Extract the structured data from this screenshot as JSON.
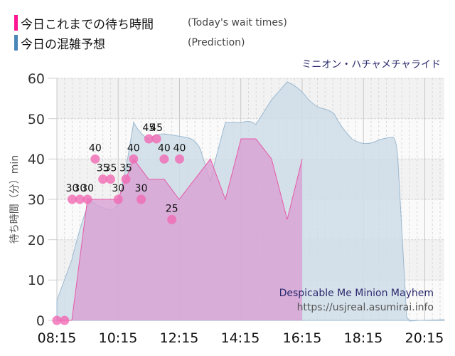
{
  "legend": {
    "items": [
      {
        "label_jp": "今日これまでの待ち時間",
        "label_en": "(Today's wait times)",
        "color": "#ff1493"
      },
      {
        "label_jp": "今日の混雑予想",
        "label_en": "(Prediction)",
        "color": "#4a86b8"
      }
    ]
  },
  "ride_name_jp": "ミニオン・ハチャメチャライド",
  "y_axis_title": "待ち時間（分）min",
  "watermark": {
    "title": "Despicable Me Minion Mayhem",
    "url": "https://usjreal.asumirai.info"
  },
  "y_ticks": [
    "60",
    "50",
    "40",
    "30",
    "20",
    "10",
    "0"
  ],
  "x_ticks": [
    "08:15",
    "10:15",
    "12:15",
    "14:15",
    "16:15",
    "18:15",
    "20:15"
  ],
  "colors": {
    "actual_fill": "#d9a3d4",
    "actual_line": "#e65aa8",
    "actual_point": "#f06ab4",
    "prediction_fill": "#cfdde8",
    "prediction_line": "#9bb8d0",
    "plot_bg_band": "#f2f2f2"
  },
  "chart_data": {
    "type": "area",
    "title": "ミニオン・ハチャメチャライド",
    "xlabel": "",
    "ylabel": "待ち時間（分）min",
    "ylim": [
      0,
      60
    ],
    "grid": true,
    "legend_position": "top-left",
    "series": [
      {
        "name": "今日これまでの待ち時間 (Today's wait times)",
        "type": "line+area",
        "x": [
          "08:15",
          "08:30",
          "08:45",
          "09:00",
          "09:15",
          "09:30",
          "09:45",
          "10:00",
          "10:15",
          "10:30",
          "10:45",
          "11:00",
          "11:15",
          "11:30",
          "11:45",
          "12:00",
          "12:15"
        ],
        "values": [
          0,
          0,
          30,
          30,
          30,
          40,
          35,
          35,
          30,
          35,
          40,
          30,
          45,
          45,
          40,
          25,
          40
        ],
        "labels": [
          "",
          "",
          "30",
          "30",
          "30",
          "40",
          "35",
          "35",
          "30",
          "35",
          "40",
          "30",
          "45",
          "45",
          "40",
          "25",
          "40"
        ]
      },
      {
        "name": "今日の混雑予想 (Prediction)",
        "type": "area",
        "x": [
          "08:15",
          "08:45",
          "09:00",
          "09:15",
          "09:30",
          "09:45",
          "10:00",
          "10:15",
          "10:30",
          "10:45",
          "11:00",
          "11:15",
          "11:30",
          "11:45",
          "12:00",
          "12:15",
          "12:30",
          "12:45",
          "13:00",
          "13:15",
          "13:30",
          "13:45",
          "14:00",
          "14:15",
          "14:30",
          "14:45",
          "15:00",
          "15:15",
          "15:30",
          "15:45",
          "16:00",
          "16:15"
        ],
        "values": [
          5,
          15,
          28,
          27,
          27,
          49,
          45,
          46,
          45,
          44,
          34,
          48,
          49,
          49,
          48,
          52,
          57,
          59,
          57,
          54,
          52,
          52,
          46,
          44,
          44,
          45,
          45,
          45,
          20,
          0,
          0,
          0
        ]
      }
    ],
    "x_tick_labels": [
      "08:15",
      "10:15",
      "12:15",
      "14:15",
      "16:15",
      "18:15",
      "20:15"
    ],
    "y_tick_labels": [
      "0",
      "10",
      "20",
      "30",
      "40",
      "50",
      "60"
    ]
  }
}
